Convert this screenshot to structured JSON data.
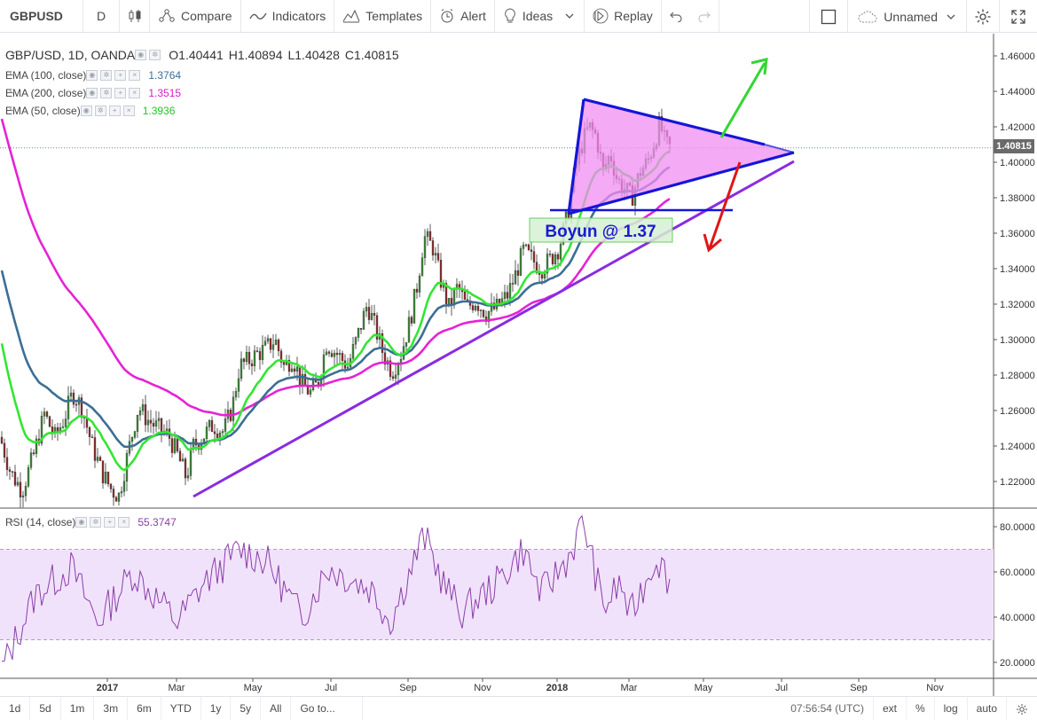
{
  "toolbar": {
    "symbol": "GBPUSD",
    "interval": "D",
    "compare": "Compare",
    "indicators": "Indicators",
    "templates": "Templates",
    "alert": "Alert",
    "ideas": "Ideas",
    "replay": "Replay",
    "layout_name": "Unnamed"
  },
  "legend": {
    "title": "GBP/USD, 1D, OANDA",
    "open": "O1.40441",
    "high": "H1.40894",
    "low": "L1.40428",
    "close": "C1.40815",
    "ema100_label": "EMA (100, close)",
    "ema100_value": "1.3764",
    "ema200_label": "EMA (200, close)",
    "ema200_value": "1.3515",
    "ema50_label": "EMA (50, close)",
    "ema50_value": "1.3936",
    "rsi_label": "RSI (14, close)",
    "rsi_value": "55.3747"
  },
  "annotation": {
    "label": "Boyun @ 1.37"
  },
  "price_axis": {
    "ticks": [
      "1.46000",
      "1.44000",
      "1.42000",
      "1.40000",
      "1.38000",
      "1.36000",
      "1.34000",
      "1.32000",
      "1.30000",
      "1.28000",
      "1.26000",
      "1.24000",
      "1.22000"
    ],
    "last_price": "1.40815"
  },
  "rsi_axis": {
    "ticks": [
      "80.0000",
      "60.0000",
      "40.0000",
      "20.0000"
    ]
  },
  "time_axis": {
    "ticks": [
      "2017",
      "Mar",
      "May",
      "Jul",
      "Sep",
      "Nov",
      "2018",
      "Mar",
      "May",
      "Jul",
      "Sep",
      "Nov"
    ]
  },
  "bottom": {
    "ranges": [
      "1d",
      "5d",
      "1m",
      "3m",
      "6m",
      "YTD",
      "1y",
      "5y",
      "All"
    ],
    "goto": "Go to...",
    "clock": "07:56:54 (UTC)",
    "ext": "ext",
    "percent": "%",
    "log": "log",
    "auto": "auto"
  },
  "colors": {
    "up_candle": "#3f8a3a",
    "down_candle": "#8e2e2e",
    "ema50": "#33e633",
    "ema100": "#3c6e94",
    "ema200": "#e622d6",
    "rsi_line": "#8a3fa8",
    "rsi_band": "#f1e2fb",
    "triangle_fill": "#f28ef2",
    "triangle_stroke": "#1515d8",
    "trendline": "#8a2be2",
    "arrow_up": "#33d633",
    "arrow_down": "#e01515"
  }
}
